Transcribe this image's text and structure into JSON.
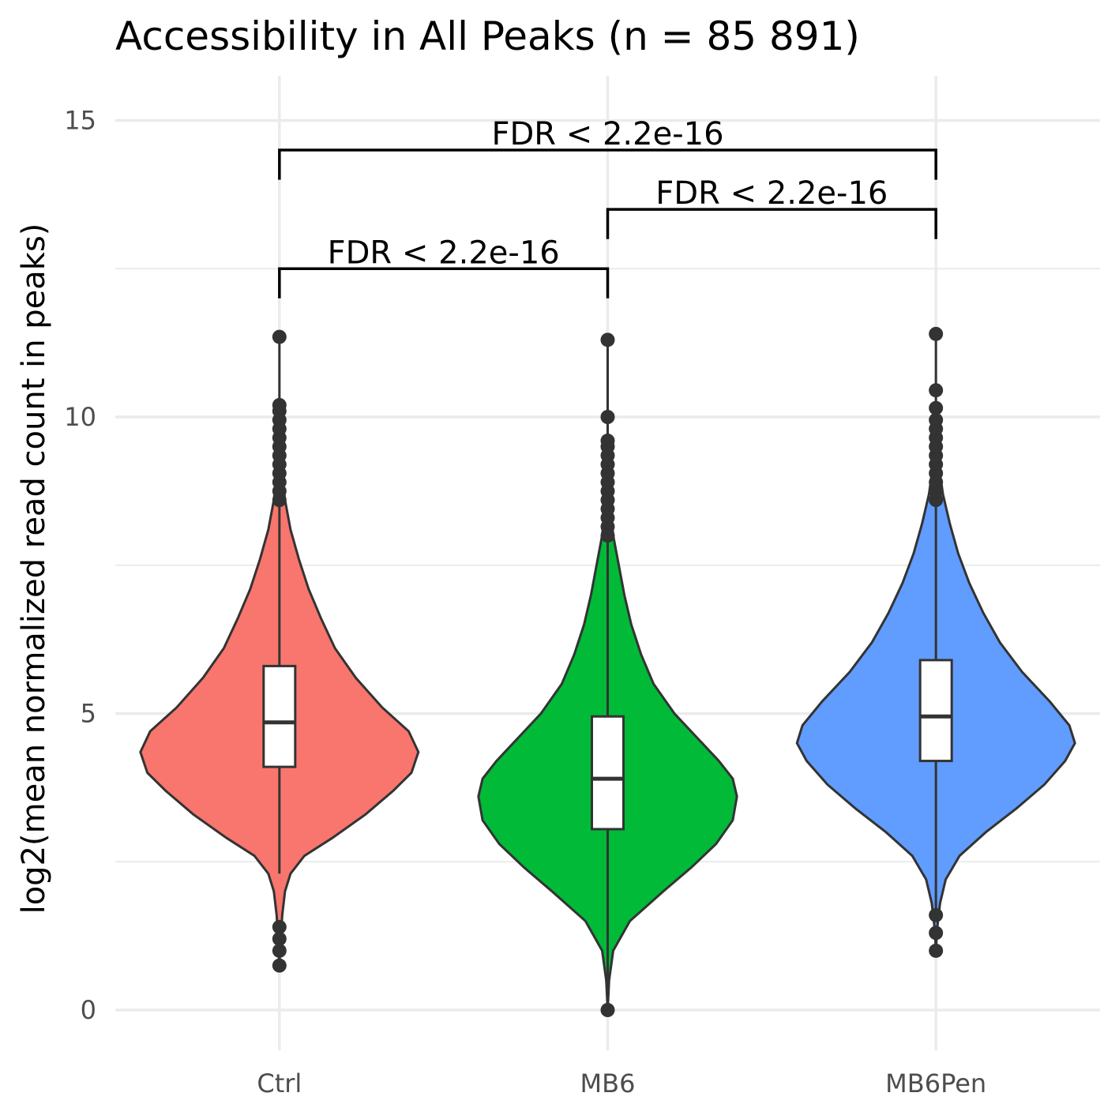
{
  "chart_data": {
    "type": "violin",
    "title": "Accessibility in All Peaks (n = 85 891)",
    "xlabel": "",
    "ylabel": "log2(mean normalized read count in peaks)",
    "ylim": [
      -0.5,
      15.7
    ],
    "y_ticks": [
      0,
      5,
      10,
      15
    ],
    "grid": true,
    "categories": [
      "Ctrl",
      "MB6",
      "MB6Pen"
    ],
    "series": [
      {
        "category": "Ctrl",
        "color": "#F8766D",
        "box": {
          "q1": 4.1,
          "median": 4.85,
          "q3": 5.8
        },
        "whisker_low": 2.3,
        "whisker_high": 8.5,
        "max_outlier": 11.35,
        "outliers": [
          0.75,
          1.0,
          1.2,
          1.4,
          8.6,
          8.75,
          8.9,
          9.05,
          9.2,
          9.35,
          9.5,
          9.65,
          9.8,
          9.95,
          10.1,
          10.2,
          11.35
        ],
        "density": [
          [
            0.75,
            0.0
          ],
          [
            1.2,
            0.01
          ],
          [
            1.6,
            0.02
          ],
          [
            2.0,
            0.04
          ],
          [
            2.3,
            0.08
          ],
          [
            2.6,
            0.18
          ],
          [
            2.9,
            0.38
          ],
          [
            3.3,
            0.62
          ],
          [
            3.7,
            0.82
          ],
          [
            4.0,
            0.95
          ],
          [
            4.35,
            1.0
          ],
          [
            4.7,
            0.93
          ],
          [
            5.1,
            0.74
          ],
          [
            5.6,
            0.55
          ],
          [
            6.1,
            0.4
          ],
          [
            6.6,
            0.3
          ],
          [
            7.1,
            0.21
          ],
          [
            7.6,
            0.14
          ],
          [
            8.1,
            0.08
          ],
          [
            8.6,
            0.04
          ],
          [
            9.1,
            0.02
          ],
          [
            9.6,
            0.01
          ],
          [
            10.2,
            0.0
          ]
        ]
      },
      {
        "category": "MB6",
        "color": "#00BA38",
        "box": {
          "q1": 3.05,
          "median": 3.9,
          "q3": 4.95
        },
        "whisker_low": 0.0,
        "whisker_high": 7.9,
        "max_outlier": 11.3,
        "outliers": [
          0.0,
          8.0,
          8.15,
          8.3,
          8.45,
          8.6,
          8.75,
          8.9,
          9.05,
          9.2,
          9.35,
          9.5,
          9.6,
          10.0,
          11.3
        ],
        "density": [
          [
            0.0,
            0.0
          ],
          [
            0.5,
            0.01
          ],
          [
            1.0,
            0.04
          ],
          [
            1.5,
            0.16
          ],
          [
            2.0,
            0.4
          ],
          [
            2.4,
            0.6
          ],
          [
            2.8,
            0.78
          ],
          [
            3.2,
            0.9
          ],
          [
            3.6,
            0.93
          ],
          [
            3.9,
            0.9
          ],
          [
            4.2,
            0.8
          ],
          [
            4.6,
            0.64
          ],
          [
            5.0,
            0.48
          ],
          [
            5.5,
            0.33
          ],
          [
            6.0,
            0.24
          ],
          [
            6.5,
            0.17
          ],
          [
            7.0,
            0.12
          ],
          [
            7.5,
            0.08
          ],
          [
            8.0,
            0.04
          ],
          [
            8.5,
            0.02
          ],
          [
            9.0,
            0.01
          ],
          [
            9.6,
            0.0
          ]
        ]
      },
      {
        "category": "MB6Pen",
        "color": "#619CFF",
        "box": {
          "q1": 4.2,
          "median": 4.95,
          "q3": 5.9
        },
        "whisker_low": 1.7,
        "whisker_high": 8.5,
        "max_outlier": 11.4,
        "outliers": [
          1.0,
          1.3,
          1.6,
          8.6,
          8.75,
          8.9,
          9.05,
          9.2,
          9.35,
          9.5,
          9.65,
          9.8,
          9.95,
          10.15,
          10.45,
          11.4
        ],
        "density": [
          [
            1.0,
            0.0
          ],
          [
            1.4,
            0.01
          ],
          [
            1.8,
            0.03
          ],
          [
            2.2,
            0.07
          ],
          [
            2.6,
            0.17
          ],
          [
            3.0,
            0.36
          ],
          [
            3.4,
            0.58
          ],
          [
            3.8,
            0.78
          ],
          [
            4.2,
            0.93
          ],
          [
            4.5,
            1.0
          ],
          [
            4.8,
            0.96
          ],
          [
            5.2,
            0.82
          ],
          [
            5.7,
            0.62
          ],
          [
            6.2,
            0.46
          ],
          [
            6.7,
            0.34
          ],
          [
            7.2,
            0.24
          ],
          [
            7.7,
            0.16
          ],
          [
            8.2,
            0.1
          ],
          [
            8.7,
            0.05
          ],
          [
            9.2,
            0.02
          ],
          [
            9.8,
            0.0
          ]
        ]
      }
    ],
    "annotations": [
      {
        "label": "FDR < 2.2e-16",
        "from": "Ctrl",
        "to": "MB6",
        "y": 12.5,
        "tip_y": 12.0
      },
      {
        "label": "FDR < 2.2e-16",
        "from": "MB6",
        "to": "MB6Pen",
        "y": 13.5,
        "tip_y": 13.0
      },
      {
        "label": "FDR < 2.2e-16",
        "from": "Ctrl",
        "to": "MB6Pen",
        "y": 14.5,
        "tip_y": 14.0
      }
    ]
  }
}
